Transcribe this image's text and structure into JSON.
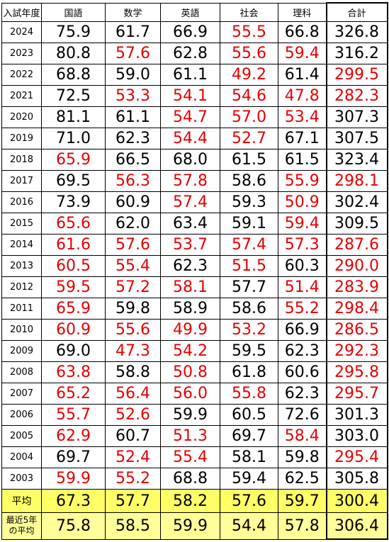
{
  "below_average_color": "#e60000",
  "table": {
    "header": [
      "入試年度",
      "国語",
      "数学",
      "英語",
      "社会",
      "理科",
      "合計"
    ],
    "rows": [
      [
        "2024",
        "75.9",
        "61.7",
        "66.9",
        "55.5",
        "66.8",
        "326.8"
      ],
      [
        "2023",
        "80.8",
        "57.6",
        "62.8",
        "55.6",
        "59.4",
        "316.2"
      ],
      [
        "2022",
        "68.8",
        "59.0",
        "61.1",
        "49.2",
        "61.4",
        "299.5"
      ],
      [
        "2021",
        "72.5",
        "53.3",
        "54.1",
        "54.6",
        "47.8",
        "282.3"
      ],
      [
        "2020",
        "81.1",
        "61.1",
        "54.7",
        "57.0",
        "53.4",
        "307.3"
      ],
      [
        "2019",
        "71.0",
        "62.3",
        "54.4",
        "52.7",
        "67.1",
        "307.5"
      ],
      [
        "2018",
        "65.9",
        "66.5",
        "68.0",
        "61.5",
        "61.5",
        "323.4"
      ],
      [
        "2017",
        "69.5",
        "56.3",
        "57.8",
        "58.6",
        "55.9",
        "298.1"
      ],
      [
        "2016",
        "73.9",
        "60.9",
        "57.4",
        "59.3",
        "50.9",
        "302.4"
      ],
      [
        "2015",
        "65.6",
        "62.0",
        "63.4",
        "59.1",
        "59.4",
        "309.5"
      ],
      [
        "2014",
        "61.6",
        "57.6",
        "53.7",
        "57.4",
        "57.3",
        "287.6"
      ],
      [
        "2013",
        "60.5",
        "55.4",
        "62.3",
        "51.5",
        "60.3",
        "290.0"
      ],
      [
        "2012",
        "59.5",
        "57.2",
        "58.1",
        "57.7",
        "51.4",
        "283.9"
      ],
      [
        "2011",
        "65.9",
        "59.8",
        "58.9",
        "58.6",
        "55.2",
        "298.4"
      ],
      [
        "2010",
        "60.9",
        "55.6",
        "49.9",
        "53.2",
        "66.9",
        "286.5"
      ],
      [
        "2009",
        "69.0",
        "47.3",
        "54.2",
        "59.5",
        "62.3",
        "292.3"
      ],
      [
        "2008",
        "63.8",
        "58.8",
        "50.8",
        "61.8",
        "60.6",
        "295.8"
      ],
      [
        "2007",
        "65.2",
        "56.4",
        "56.0",
        "55.8",
        "62.3",
        "295.7"
      ],
      [
        "2006",
        "55.7",
        "52.6",
        "59.9",
        "60.5",
        "72.6",
        "301.3"
      ],
      [
        "2005",
        "62.9",
        "60.7",
        "51.3",
        "69.7",
        "58.4",
        "303.0"
      ],
      [
        "2004",
        "69.7",
        "52.4",
        "55.4",
        "58.1",
        "59.8",
        "295.4"
      ],
      [
        "2003",
        "59.9",
        "55.2",
        "68.8",
        "59.4",
        "62.5",
        "305.8"
      ]
    ],
    "average": [
      "平均",
      "67.3",
      "57.7",
      "58.2",
      "57.6",
      "59.7",
      "300.4"
    ],
    "recent_average": [
      "最近5年\nの平均",
      "75.8",
      "58.5",
      "59.9",
      "54.4",
      "57.8",
      "306.4"
    ]
  }
}
